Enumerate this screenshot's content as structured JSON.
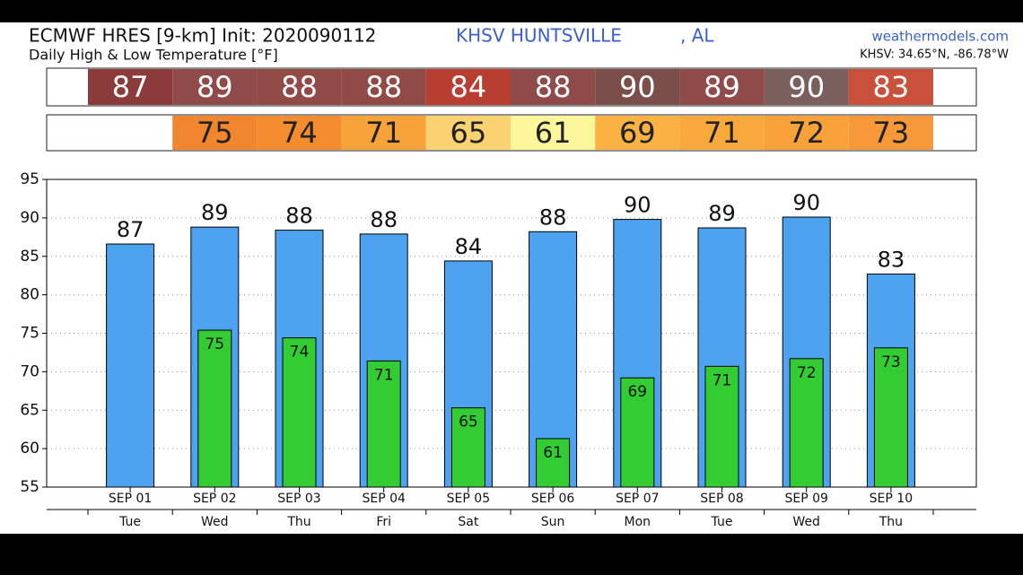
{
  "chart_data": {
    "type": "bar",
    "title": "ECMWF HRES [9-km] Init: 2020090112",
    "location": "KHSV HUNTSVILLE",
    "location_suffix": ", AL",
    "source": "weathermodels.com",
    "subtitle": "Daily High & Low Temperature [°F]",
    "station_coords": "KHSV: 34.65°N, -86.78°W",
    "categories": [
      "SEP 01",
      "SEP 02",
      "SEP 03",
      "SEP 04",
      "SEP 05",
      "SEP 06",
      "SEP 07",
      "SEP 08",
      "SEP 09",
      "SEP 10"
    ],
    "weekdays": [
      "Tue",
      "Wed",
      "Thu",
      "Fri",
      "Sat",
      "Sun",
      "Mon",
      "Tue",
      "Wed",
      "Thu"
    ],
    "series": [
      {
        "color": "#4da3f0",
        "values": [
          86.6,
          88.8,
          88.4,
          87.9,
          84.4,
          88.2,
          89.8,
          88.7,
          90.1,
          82.7
        ],
        "value_labels": [
          "87",
          "89",
          "88",
          "88",
          "84",
          "88",
          "90",
          "89",
          "90",
          "83"
        ],
        "cell_colors": [
          "#8c3b3b",
          "#8e4b49",
          "#924a47",
          "#924a47",
          "#b83e31",
          "#8e4b49",
          "#7b4d4b",
          "#8e4b49",
          "#7a5f5d",
          "#c9503a"
        ]
      },
      {
        "color": "#33cc33",
        "values": [
          null,
          75.4,
          74.4,
          71.4,
          65.3,
          61.3,
          69.2,
          70.7,
          71.7,
          73.1
        ],
        "value_labels": [
          null,
          "75",
          "74",
          "71",
          "65",
          "61",
          "69",
          "71",
          "72",
          "73"
        ],
        "cell_colors": [
          null,
          "#f2862e",
          "#f58c30",
          "#f8a23a",
          "#fbd272",
          "#fdf79c",
          "#fbb242",
          "#f9a93b",
          "#f9a23a",
          "#f7993a"
        ]
      }
    ],
    "ylim": [
      55,
      95
    ],
    "yticks": [
      55,
      60,
      65,
      70,
      75,
      80,
      85,
      90,
      95
    ],
    "grid": true
  }
}
